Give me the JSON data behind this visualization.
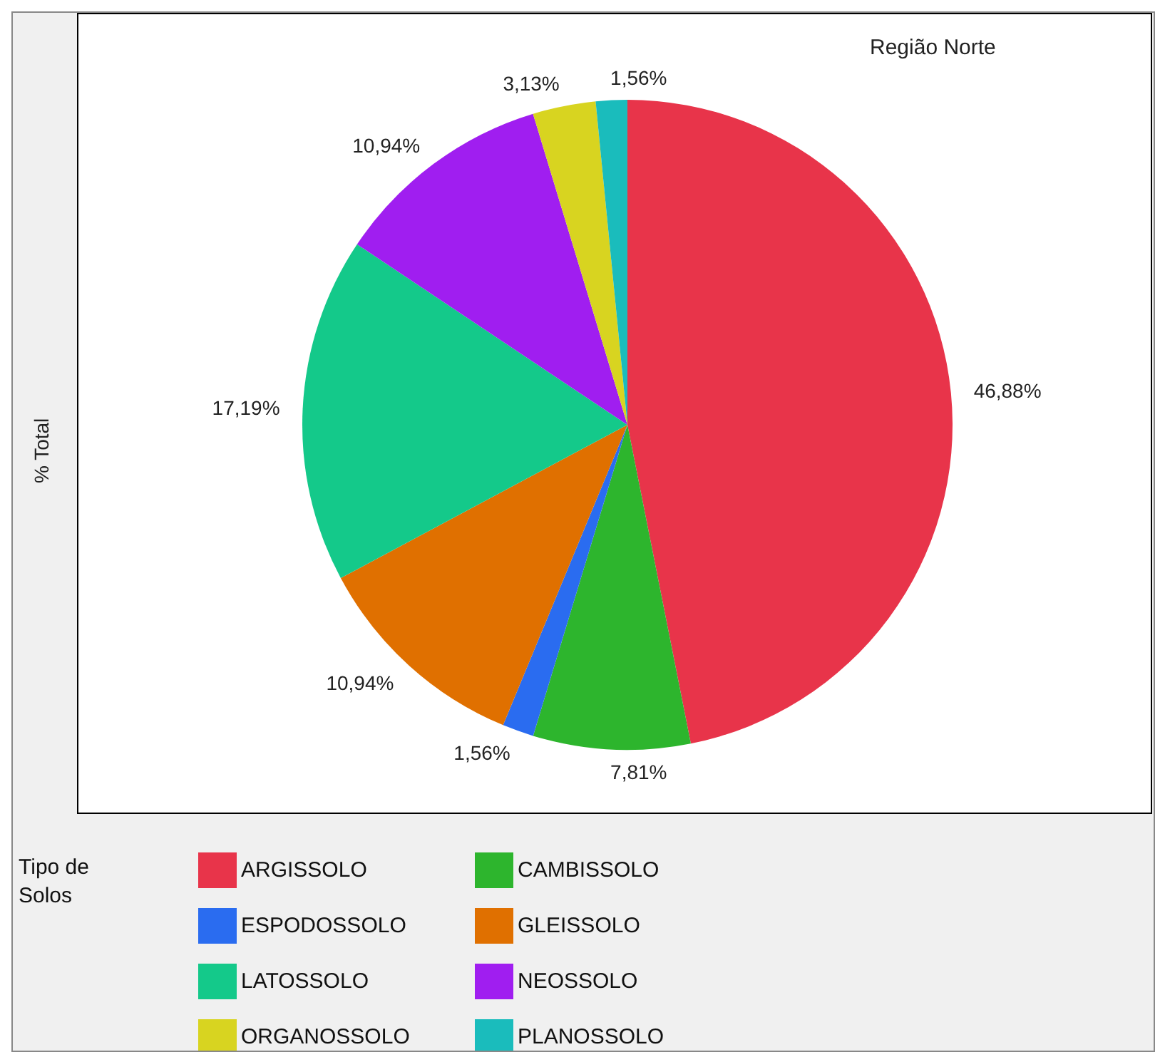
{
  "chart_data": {
    "type": "pie",
    "title": "Região Norte",
    "ylabel": "% Total",
    "legend_title": "Tipo de Solos",
    "categories": [
      "ARGISSOLO",
      "CAMBISSOLO",
      "ESPODOSSOLO",
      "GLEISSOLO",
      "LATOSSOLO",
      "NEOSSOLO",
      "ORGANOSSOLO",
      "PLANOSSOLO"
    ],
    "values": [
      46.88,
      7.81,
      1.56,
      10.94,
      17.19,
      10.94,
      3.13,
      1.56
    ],
    "value_labels": [
      "46,88%",
      "7,81%",
      "1,56%",
      "10,94%",
      "17,19%",
      "10,94%",
      "3,13%",
      "1,56%"
    ],
    "colors": [
      "#e8344a",
      "#2db52d",
      "#2a6cf0",
      "#e07000",
      "#14c98a",
      "#a01ef0",
      "#d8d420",
      "#1abcbc"
    ],
    "legend": "bottom"
  }
}
